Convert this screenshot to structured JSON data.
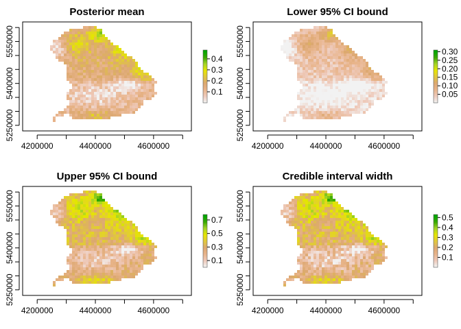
{
  "panels": [
    {
      "title": "Posterior mean",
      "field": "mean",
      "legend": {
        "min": 0.0,
        "max": 0.48,
        "ticks": [
          "0.1",
          "0.2",
          "0.3",
          "0.4"
        ],
        "tick_values": [
          0.1,
          0.2,
          0.3,
          0.4
        ]
      }
    },
    {
      "title": "Lower 95% CI bound",
      "field": "lower",
      "legend": {
        "min": 0.0,
        "max": 0.31,
        "ticks": [
          "0.05",
          "0.10",
          "0.15",
          "0.20",
          "0.25",
          "0.30"
        ],
        "tick_values": [
          0.05,
          0.1,
          0.15,
          0.2,
          0.25,
          0.3
        ]
      }
    },
    {
      "title": "Upper 95% CI bound",
      "field": "upper",
      "legend": {
        "min": 0.0,
        "max": 0.78,
        "ticks": [
          "0.1",
          "0.3",
          "0.5",
          "0.7"
        ],
        "tick_values": [
          0.1,
          0.3,
          0.5,
          0.7
        ]
      }
    },
    {
      "title": "Credible interval width",
      "field": "width",
      "legend": {
        "min": 0.0,
        "max": 0.53,
        "ticks": [
          "0.1",
          "0.2",
          "0.3",
          "0.4",
          "0.5"
        ],
        "tick_values": [
          0.1,
          0.2,
          0.3,
          0.4,
          0.5
        ]
      }
    }
  ],
  "axes": {
    "x_range": [
      4150000,
      4730000
    ],
    "y_range": [
      5230000,
      5620000
    ],
    "x_ticks": [
      4200000,
      4300000,
      4400000,
      4500000,
      4600000,
      4700000
    ],
    "x_tick_labels": [
      "4200000",
      "4400000",
      "4600000"
    ],
    "y_ticks": [
      5250000,
      5300000,
      5350000,
      5400000,
      5450000,
      5500000,
      5550000,
      5600000
    ],
    "y_tick_labels": [
      "5250000",
      "5400000",
      "5550000"
    ]
  },
  "colors": {
    "scale": [
      "#f2f2f2",
      "#eec9b9",
      "#e8b48a",
      "#dca870",
      "#e1c83c",
      "#e6e600",
      "#a3d327",
      "#38a800",
      "#00a600"
    ]
  }
}
